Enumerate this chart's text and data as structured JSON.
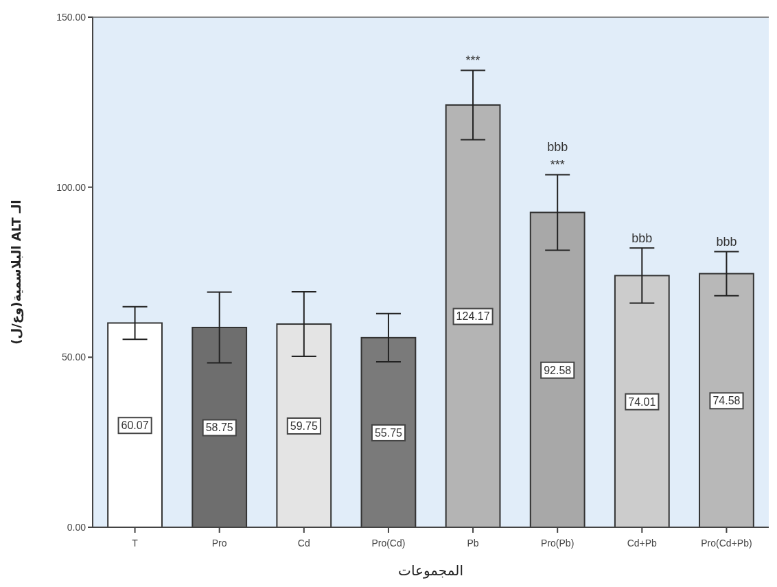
{
  "chart_data": {
    "type": "bar",
    "xlabel": "المجموعات",
    "ylabel": "الـ ALT البلاسمية(وع/ل)",
    "categories": [
      "T",
      "Pro",
      "Cd",
      "Pro(Cd)",
      "Pb",
      "Pro(Pb)",
      "Cd+Pb",
      "Pro(Cd+Pb)"
    ],
    "values": [
      60.07,
      58.75,
      59.75,
      55.75,
      124.17,
      92.58,
      74.01,
      74.58
    ],
    "errors": [
      4.8,
      10.4,
      9.5,
      7.1,
      10.2,
      11.1,
      8.1,
      6.5
    ],
    "colors": [
      "#ffffff",
      "#6e6e6e",
      "#e4e4e4",
      "#7a7a7a",
      "#b4b4b4",
      "#a8a8a8",
      "#cccccc",
      "#b8b8b8"
    ],
    "data_labels": true,
    "ylim": [
      0,
      150
    ],
    "yticks": [
      {
        "value": 0,
        "label": "0.00"
      },
      {
        "value": 50,
        "label": "50.00"
      },
      {
        "value": 100,
        "label": "100.00"
      },
      {
        "value": 150,
        "label": "150.00"
      }
    ],
    "annotations": [
      {
        "text": "***",
        "x": "Pb",
        "y": 134.37
      },
      {
        "text": "***",
        "x": "Pro(Pb)",
        "y": 103.68
      },
      {
        "text": "bbb",
        "x": "Pro(Pb)",
        "y": 103.68
      },
      {
        "text": "bbb",
        "x": "Cd+Pb",
        "y": 82.11
      },
      {
        "text": "bbb",
        "x": "Pro(Cd+Pb)",
        "y": 81.08
      }
    ],
    "grid": false,
    "legend": false
  }
}
